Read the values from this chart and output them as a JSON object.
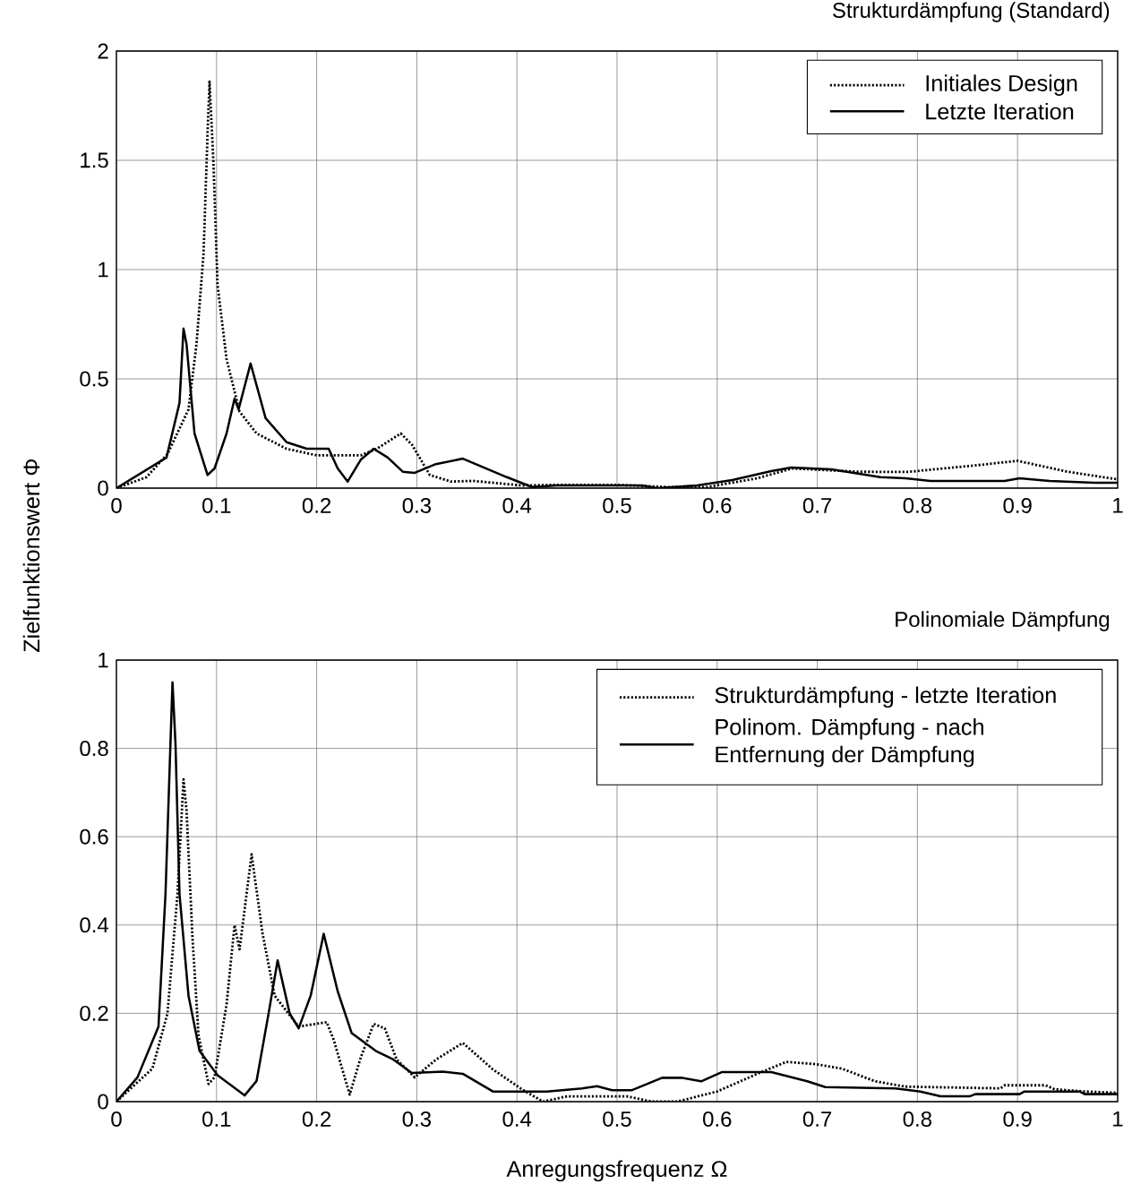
{
  "chart_data": [
    {
      "type": "line",
      "title": "Strukturdämpfung (Standard)",
      "ylabel": "Zielfunktionswert Φ",
      "xlim": [
        0,
        1
      ],
      "ylim": [
        0,
        2
      ],
      "xticks": [
        0,
        0.1,
        0.2,
        0.3,
        0.4,
        0.5,
        0.6,
        0.7,
        0.8,
        0.9,
        1
      ],
      "yticks": [
        0,
        0.5,
        1,
        1.5,
        2
      ],
      "grid": true,
      "legend": "top right",
      "series": [
        {
          "name": "Initiales Design",
          "color": "#000000",
          "line_style": "dotted",
          "x": [
            0,
            0.03,
            0.051,
            0.072,
            0.08,
            0.087,
            0.091,
            0.093,
            0.097,
            0.101,
            0.11,
            0.123,
            0.14,
            0.17,
            0.2,
            0.244,
            0.26,
            0.284,
            0.295,
            0.313,
            0.334,
            0.356,
            0.405,
            0.44,
            0.5,
            0.55,
            0.59,
            0.64,
            0.675,
            0.74,
            0.79,
            0.86,
            0.9,
            0.95,
            1
          ],
          "values": [
            0,
            0.05,
            0.156,
            0.36,
            0.66,
            1.07,
            1.62,
            1.86,
            1.48,
            0.93,
            0.59,
            0.35,
            0.25,
            0.18,
            0.15,
            0.15,
            0.18,
            0.25,
            0.2,
            0.06,
            0.03,
            0.033,
            0.012,
            0.015,
            0.015,
            0.005,
            0.005,
            0.045,
            0.09,
            0.075,
            0.074,
            0.105,
            0.125,
            0.075,
            0.04
          ]
        },
        {
          "name": "Letzte Iteration",
          "color": "#000000",
          "line_style": "solid",
          "x": [
            0,
            0.05,
            0.063,
            0.067,
            0.07,
            0.078,
            0.091,
            0.098,
            0.11,
            0.118,
            0.122,
            0.134,
            0.149,
            0.17,
            0.19,
            0.212,
            0.221,
            0.231,
            0.244,
            0.257,
            0.271,
            0.286,
            0.298,
            0.319,
            0.346,
            0.39,
            0.415,
            0.44,
            0.525,
            0.54,
            0.58,
            0.615,
            0.654,
            0.674,
            0.714,
            0.763,
            0.788,
            0.813,
            0.887,
            0.902,
            0.932,
            0.977,
            1
          ],
          "values": [
            0,
            0.14,
            0.39,
            0.73,
            0.66,
            0.25,
            0.06,
            0.09,
            0.25,
            0.41,
            0.36,
            0.57,
            0.32,
            0.21,
            0.18,
            0.18,
            0.09,
            0.03,
            0.13,
            0.18,
            0.14,
            0.075,
            0.07,
            0.11,
            0.135,
            0.05,
            0.005,
            0.012,
            0.012,
            0,
            0.012,
            0.037,
            0.078,
            0.094,
            0.086,
            0.05,
            0.045,
            0.033,
            0.033,
            0.045,
            0.033,
            0.025,
            0.025
          ]
        }
      ]
    },
    {
      "type": "line",
      "title": "Polinomiale Dämpfung",
      "xlabel": "Anregungsfrequenz Ω",
      "xlim": [
        0,
        1
      ],
      "ylim": [
        0,
        1
      ],
      "xticks": [
        0,
        0.1,
        0.2,
        0.3,
        0.4,
        0.5,
        0.6,
        0.7,
        0.8,
        0.9,
        1
      ],
      "yticks": [
        0,
        0.2,
        0.4,
        0.6,
        0.8,
        1
      ],
      "grid": true,
      "legend": "top right",
      "series": [
        {
          "name": "Strukturdämpfung - letzte Iteration",
          "color": "#000000",
          "line_style": "dotted",
          "x": [
            0,
            0.036,
            0.051,
            0.061,
            0.067,
            0.07,
            0.076,
            0.082,
            0.092,
            0.098,
            0.11,
            0.118,
            0.123,
            0.135,
            0.146,
            0.158,
            0.182,
            0.21,
            0.217,
            0.233,
            0.244,
            0.257,
            0.268,
            0.28,
            0.298,
            0.319,
            0.346,
            0.376,
            0.405,
            0.426,
            0.45,
            0.51,
            0.535,
            0.56,
            0.6,
            0.64,
            0.669,
            0.698,
            0.724,
            0.758,
            0.788,
            0.883,
            0.887,
            0.928,
            0.937,
            0.967,
            1
          ],
          "values": [
            0,
            0.075,
            0.2,
            0.47,
            0.73,
            0.66,
            0.37,
            0.15,
            0.04,
            0.055,
            0.22,
            0.4,
            0.345,
            0.56,
            0.38,
            0.24,
            0.17,
            0.18,
            0.14,
            0.016,
            0.1,
            0.176,
            0.166,
            0.095,
            0.055,
            0.095,
            0.133,
            0.073,
            0.028,
            0,
            0.012,
            0.012,
            0,
            0,
            0.023,
            0.063,
            0.09,
            0.085,
            0.075,
            0.046,
            0.034,
            0.03,
            0.037,
            0.037,
            0.028,
            0.023,
            0.02
          ]
        },
        {
          "name": "Polinom. Dämpfung - nach Entfernung der Dämpfung",
          "color": "#000000",
          "line_style": "solid",
          "x": [
            0,
            0.021,
            0.042,
            0.049,
            0.056,
            0.059,
            0.063,
            0.072,
            0.083,
            0.101,
            0.128,
            0.14,
            0.152,
            0.161,
            0.173,
            0.182,
            0.194,
            0.207,
            0.221,
            0.235,
            0.259,
            0.277,
            0.295,
            0.326,
            0.346,
            0.376,
            0.43,
            0.465,
            0.48,
            0.495,
            0.515,
            0.545,
            0.565,
            0.584,
            0.605,
            0.654,
            0.69,
            0.708,
            0.778,
            0.803,
            0.823,
            0.852,
            0.858,
            0.902,
            0.907,
            0.962,
            0.967,
            1
          ],
          "values": [
            0,
            0.055,
            0.17,
            0.47,
            0.95,
            0.81,
            0.47,
            0.24,
            0.115,
            0.06,
            0.014,
            0.047,
            0.2,
            0.32,
            0.2,
            0.166,
            0.24,
            0.38,
            0.25,
            0.155,
            0.115,
            0.095,
            0.065,
            0.068,
            0.063,
            0.023,
            0.023,
            0.03,
            0.035,
            0.026,
            0.026,
            0.054,
            0.054,
            0.046,
            0.067,
            0.067,
            0.046,
            0.033,
            0.03,
            0.023,
            0.012,
            0.012,
            0.017,
            0.017,
            0.023,
            0.023,
            0.017,
            0.017
          ]
        }
      ]
    }
  ]
}
